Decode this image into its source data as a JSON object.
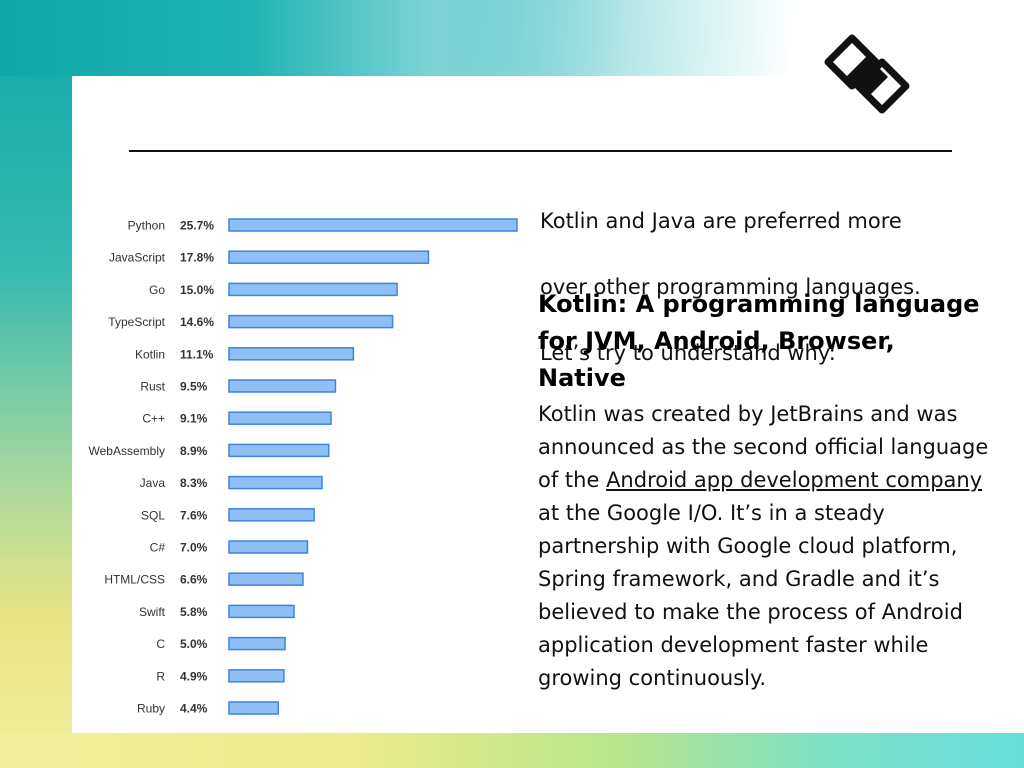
{
  "colors": {
    "bar_fill": "#8fbff5",
    "bar_stroke": "#3b86e0",
    "label": "#333333",
    "accent_teal": "#10a8a9"
  },
  "logo": {
    "icon": "diamond-logo-icon"
  },
  "intro": {
    "line1": "Kotlin and Java are preferred more",
    "line2": "over other programming languages.",
    "line3": "Let’s try to understand why:"
  },
  "section": {
    "heading": "Kotlin: A programming language for JVM, Android, Browser, Native",
    "body_before": "Kotlin was created by JetBrains and was announced as the second official language of the ",
    "link_text": "Android app development company",
    "body_after": " at the Google I/O.  It’s in a steady partnership with Google cloud platform, Spring framework, and Gradle and it’s believed to make the process of Android application development faster while growing continuously."
  },
  "chart_data": {
    "type": "bar",
    "orientation": "horizontal",
    "categories": [
      "Python",
      "JavaScript",
      "Go",
      "TypeScript",
      "Kotlin",
      "Rust",
      "C++",
      "WebAssembly",
      "Java",
      "SQL",
      "C#",
      "HTML/CSS",
      "Swift",
      "C",
      "R",
      "Ruby"
    ],
    "value_labels": [
      "25.7%",
      "17.8%",
      "15.0%",
      "14.6%",
      "11.1%",
      "9.5%",
      "9.1%",
      "8.9%",
      "8.3%",
      "7.6%",
      "7.0%",
      "6.6%",
      "5.8%",
      "5.0%",
      "4.9%",
      "4.4%"
    ],
    "values": [
      25.7,
      17.8,
      15.0,
      14.6,
      11.1,
      9.5,
      9.1,
      8.9,
      8.3,
      7.6,
      7.0,
      6.6,
      5.8,
      5.0,
      4.9,
      4.4
    ],
    "xlim": [
      0,
      25.7
    ],
    "grid": false,
    "legend": "none"
  }
}
